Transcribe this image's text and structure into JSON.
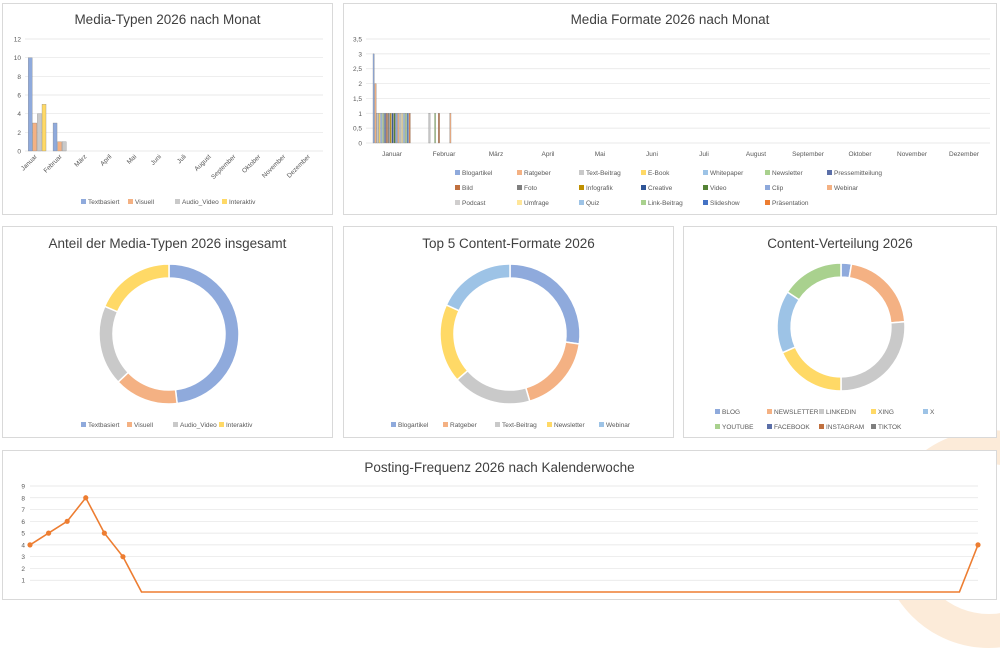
{
  "colors": {
    "blue": "#8faadc",
    "orange": "#f4b183",
    "gray": "#c9c9c9",
    "yellow": "#ffd966",
    "lightblue": "#9dc3e6",
    "green": "#a9d18e",
    "line": "#ed7d31"
  },
  "chart_data": [
    {
      "type": "bar",
      "title": "Media-Typen 2026 nach Monat",
      "categories": [
        "Januar",
        "Februar",
        "März",
        "April",
        "Mai",
        "Juni",
        "Juli",
        "August",
        "September",
        "Oktober",
        "November",
        "Dezember"
      ],
      "ylim": [
        0,
        12
      ],
      "yticks": [
        "0",
        "2",
        "4",
        "6",
        "8",
        "10",
        "12"
      ],
      "series": [
        {
          "name": "Textbasiert",
          "color": "#8faadc",
          "values": [
            10,
            3,
            0,
            0,
            0,
            0,
            0,
            0,
            0,
            0,
            0,
            0
          ]
        },
        {
          "name": "Visuell",
          "color": "#f4b183",
          "values": [
            3,
            1,
            0,
            0,
            0,
            0,
            0,
            0,
            0,
            0,
            0,
            0
          ]
        },
        {
          "name": "Audio_Video",
          "color": "#c9c9c9",
          "values": [
            4,
            1,
            0,
            0,
            0,
            0,
            0,
            0,
            0,
            0,
            0,
            0
          ]
        },
        {
          "name": "Interaktiv",
          "color": "#ffd966",
          "values": [
            5,
            0,
            0,
            0,
            0,
            0,
            0,
            0,
            0,
            0,
            0,
            0
          ]
        }
      ],
      "legend": "bottom"
    },
    {
      "type": "bar",
      "title": "Media Formate 2026 nach Monat",
      "categories": [
        "Januar",
        "Februar",
        "März",
        "April",
        "Mai",
        "Juni",
        "Juli",
        "August",
        "September",
        "Oktober",
        "November",
        "Dezember"
      ],
      "ylim": [
        0,
        3.5
      ],
      "yticks": [
        "0",
        "0,5",
        "1",
        "1,5",
        "2",
        "2,5",
        "3",
        "3,5"
      ],
      "series": [
        {
          "name": "Blogartikel",
          "color": "#8faadc",
          "values": [
            3,
            0,
            0,
            0,
            0,
            0,
            0,
            0,
            0,
            0,
            0,
            0
          ]
        },
        {
          "name": "Ratgeber",
          "color": "#f4b183",
          "values": [
            2,
            0,
            0,
            0,
            0,
            0,
            0,
            0,
            0,
            0,
            0,
            0
          ]
        },
        {
          "name": "Text-Beitrag",
          "color": "#c9c9c9",
          "values": [
            1,
            1,
            0,
            0,
            0,
            0,
            0,
            0,
            0,
            0,
            0,
            0
          ]
        },
        {
          "name": "E-Book",
          "color": "#ffd966",
          "values": [
            1,
            0,
            0,
            0,
            0,
            0,
            0,
            0,
            0,
            0,
            0,
            0
          ]
        },
        {
          "name": "Whitepaper",
          "color": "#9dc3e6",
          "values": [
            1,
            0,
            0,
            0,
            0,
            0,
            0,
            0,
            0,
            0,
            0,
            0
          ]
        },
        {
          "name": "Newsletter",
          "color": "#a9d18e",
          "values": [
            1,
            1,
            0,
            0,
            0,
            0,
            0,
            0,
            0,
            0,
            0,
            0
          ]
        },
        {
          "name": "Pressemitteilung",
          "color": "#5b6fa8",
          "values": [
            1,
            0,
            0,
            0,
            0,
            0,
            0,
            0,
            0,
            0,
            0,
            0
          ]
        },
        {
          "name": "Bild",
          "color": "#c0703f",
          "values": [
            1,
            1,
            0,
            0,
            0,
            0,
            0,
            0,
            0,
            0,
            0,
            0
          ]
        },
        {
          "name": "Foto",
          "color": "#7f7f7f",
          "values": [
            1,
            0,
            0,
            0,
            0,
            0,
            0,
            0,
            0,
            0,
            0,
            0
          ]
        },
        {
          "name": "Infografik",
          "color": "#bf9000",
          "values": [
            1,
            0,
            0,
            0,
            0,
            0,
            0,
            0,
            0,
            0,
            0,
            0
          ]
        },
        {
          "name": "Creative",
          "color": "#2f5597",
          "values": [
            1,
            0,
            0,
            0,
            0,
            0,
            0,
            0,
            0,
            0,
            0,
            0
          ]
        },
        {
          "name": "Video",
          "color": "#548235",
          "values": [
            1,
            0,
            0,
            0,
            0,
            0,
            0,
            0,
            0,
            0,
            0,
            0
          ]
        },
        {
          "name": "Clip",
          "color": "#8ea9db",
          "values": [
            1,
            0,
            0,
            0,
            0,
            0,
            0,
            0,
            0,
            0,
            0,
            0
          ]
        },
        {
          "name": "Webinar",
          "color": "#f4b183",
          "values": [
            1,
            1,
            0,
            0,
            0,
            0,
            0,
            0,
            0,
            0,
            0,
            0
          ]
        },
        {
          "name": "Podcast",
          "color": "#d0cece",
          "values": [
            1,
            0,
            0,
            0,
            0,
            0,
            0,
            0,
            0,
            0,
            0,
            0
          ]
        },
        {
          "name": "Umfrage",
          "color": "#ffe699",
          "values": [
            1,
            0,
            0,
            0,
            0,
            0,
            0,
            0,
            0,
            0,
            0,
            0
          ]
        },
        {
          "name": "Quiz",
          "color": "#9dc3e6",
          "values": [
            1,
            0,
            0,
            0,
            0,
            0,
            0,
            0,
            0,
            0,
            0,
            0
          ]
        },
        {
          "name": "Link-Beitrag",
          "color": "#a9d18e",
          "values": [
            1,
            0,
            0,
            0,
            0,
            0,
            0,
            0,
            0,
            0,
            0,
            0
          ]
        },
        {
          "name": "Slideshow",
          "color": "#4472c4",
          "values": [
            1,
            0,
            0,
            0,
            0,
            0,
            0,
            0,
            0,
            0,
            0,
            0
          ]
        },
        {
          "name": "Präsentation",
          "color": "#ed7d31",
          "values": [
            1,
            0,
            0,
            0,
            0,
            0,
            0,
            0,
            0,
            0,
            0,
            0
          ]
        }
      ],
      "legend": "bottom"
    },
    {
      "type": "pie",
      "title": "Anteil der Media-Typen 2026 insgesamt",
      "categories": [
        "Textbasiert",
        "Visuell",
        "Audio_Video",
        "Interaktiv"
      ],
      "colors": [
        "#8faadc",
        "#f4b183",
        "#c9c9c9",
        "#ffd966"
      ],
      "values": [
        13,
        4,
        5,
        5
      ],
      "legend": "bottom"
    },
    {
      "type": "pie",
      "title": "Top 5 Content-Formate 2026",
      "categories": [
        "Blogartikel",
        "Ratgeber",
        "Text-Beitrag",
        "Newsletter",
        "Webinar"
      ],
      "colors": [
        "#8faadc",
        "#f4b183",
        "#c9c9c9",
        "#ffd966",
        "#9dc3e6"
      ],
      "values": [
        3,
        2,
        2,
        2,
        2
      ],
      "legend": "bottom"
    },
    {
      "type": "pie",
      "title": "Content-Verteilung 2026",
      "categories": [
        "BLOG",
        "NEWSLETTER",
        "LINKEDIN",
        "XING",
        "X",
        "YOUTUBE",
        "FACEBOOK",
        "INSTAGRAM",
        "TIKTOK"
      ],
      "colors": [
        "#8faadc",
        "#f4b183",
        "#c9c9c9",
        "#ffd966",
        "#9dc3e6",
        "#a9d18e",
        "#5b6fa8",
        "#c0703f",
        "#7f7f7f"
      ],
      "values": [
        1,
        8,
        10,
        7,
        6,
        6,
        0,
        0,
        0
      ],
      "legend": "bottom"
    },
    {
      "type": "line",
      "title": "Posting-Frequenz 2026 nach Kalenderwoche",
      "ylim": [
        0,
        9
      ],
      "yticks": [
        "1",
        "2",
        "3",
        "4",
        "5",
        "6",
        "7",
        "8",
        "9"
      ],
      "series": [
        {
          "name": "",
          "color": "#ed7d31",
          "values": [
            4,
            5,
            6,
            8,
            5,
            3,
            0,
            0,
            0,
            0,
            0,
            0,
            0,
            0,
            0,
            0,
            0,
            0,
            0,
            0,
            0,
            0,
            0,
            0,
            0,
            0,
            0,
            0,
            0,
            0,
            0,
            0,
            0,
            0,
            0,
            0,
            0,
            0,
            0,
            0,
            0,
            0,
            0,
            0,
            0,
            0,
            0,
            0,
            0,
            0,
            0,
            4
          ]
        }
      ]
    }
  ]
}
